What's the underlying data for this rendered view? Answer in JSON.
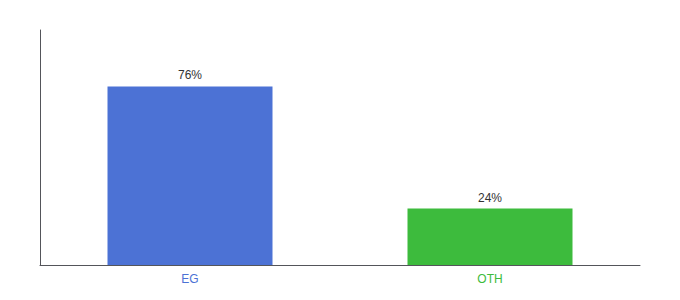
{
  "chart_data": {
    "type": "bar",
    "categories": [
      "EG",
      "OTH"
    ],
    "values": [
      76,
      24
    ],
    "value_labels": [
      "76%",
      "24%"
    ],
    "colors": [
      "#4C72D5",
      "#3DBB3D"
    ],
    "ylim": [
      0,
      100
    ],
    "data_labels": true,
    "tick_labels": "x",
    "grid": false
  }
}
